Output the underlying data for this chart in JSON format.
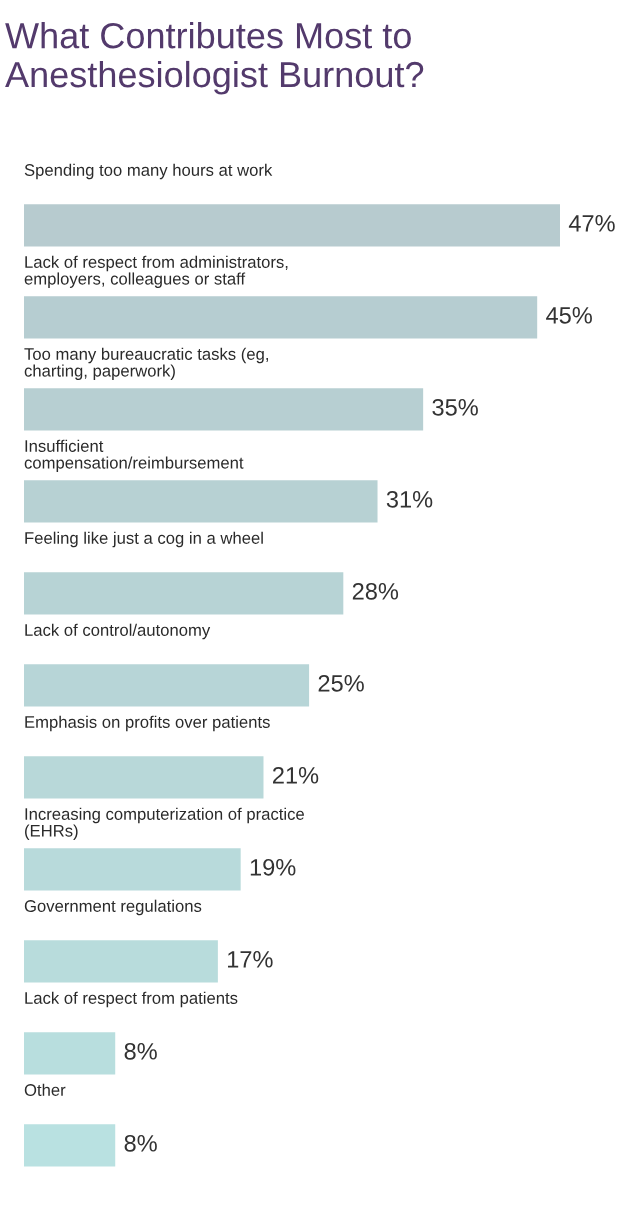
{
  "chart_data": {
    "type": "bar",
    "orientation": "horizontal",
    "title": "What Contributes Most to\nAnesthesiologist Burnout?",
    "categories": [
      "Spending too many hours at work",
      "Lack of respect from administrators,\nemployers, colleagues or staff",
      "Too many bureaucratic tasks (eg,\ncharting, paperwork)",
      "Insufficient\ncompensation/reimbursement",
      "Feeling like just a cog in a wheel",
      "Lack of control/autonomy",
      "Emphasis on profits over patients",
      "Increasing computerization of practice\n(EHRs)",
      "Government regulations",
      "Lack of respect from patients",
      "Other"
    ],
    "values": [
      47,
      45,
      35,
      31,
      28,
      25,
      21,
      19,
      17,
      8,
      8
    ],
    "value_labels": [
      "47%",
      "45%",
      "35%",
      "31%",
      "28%",
      "25%",
      "21%",
      "19%",
      "17%",
      "8%",
      "8%"
    ],
    "colors": [
      "#b7cbcf",
      "#b6cdd1",
      "#b7cfd2",
      "#b7d1d3",
      "#b7d3d5",
      "#b7d5d7",
      "#b8d8d9",
      "#b8dadb",
      "#b8dcdc",
      "#b8dede",
      "#b9e1e1"
    ],
    "tick_labels": "y"
  }
}
